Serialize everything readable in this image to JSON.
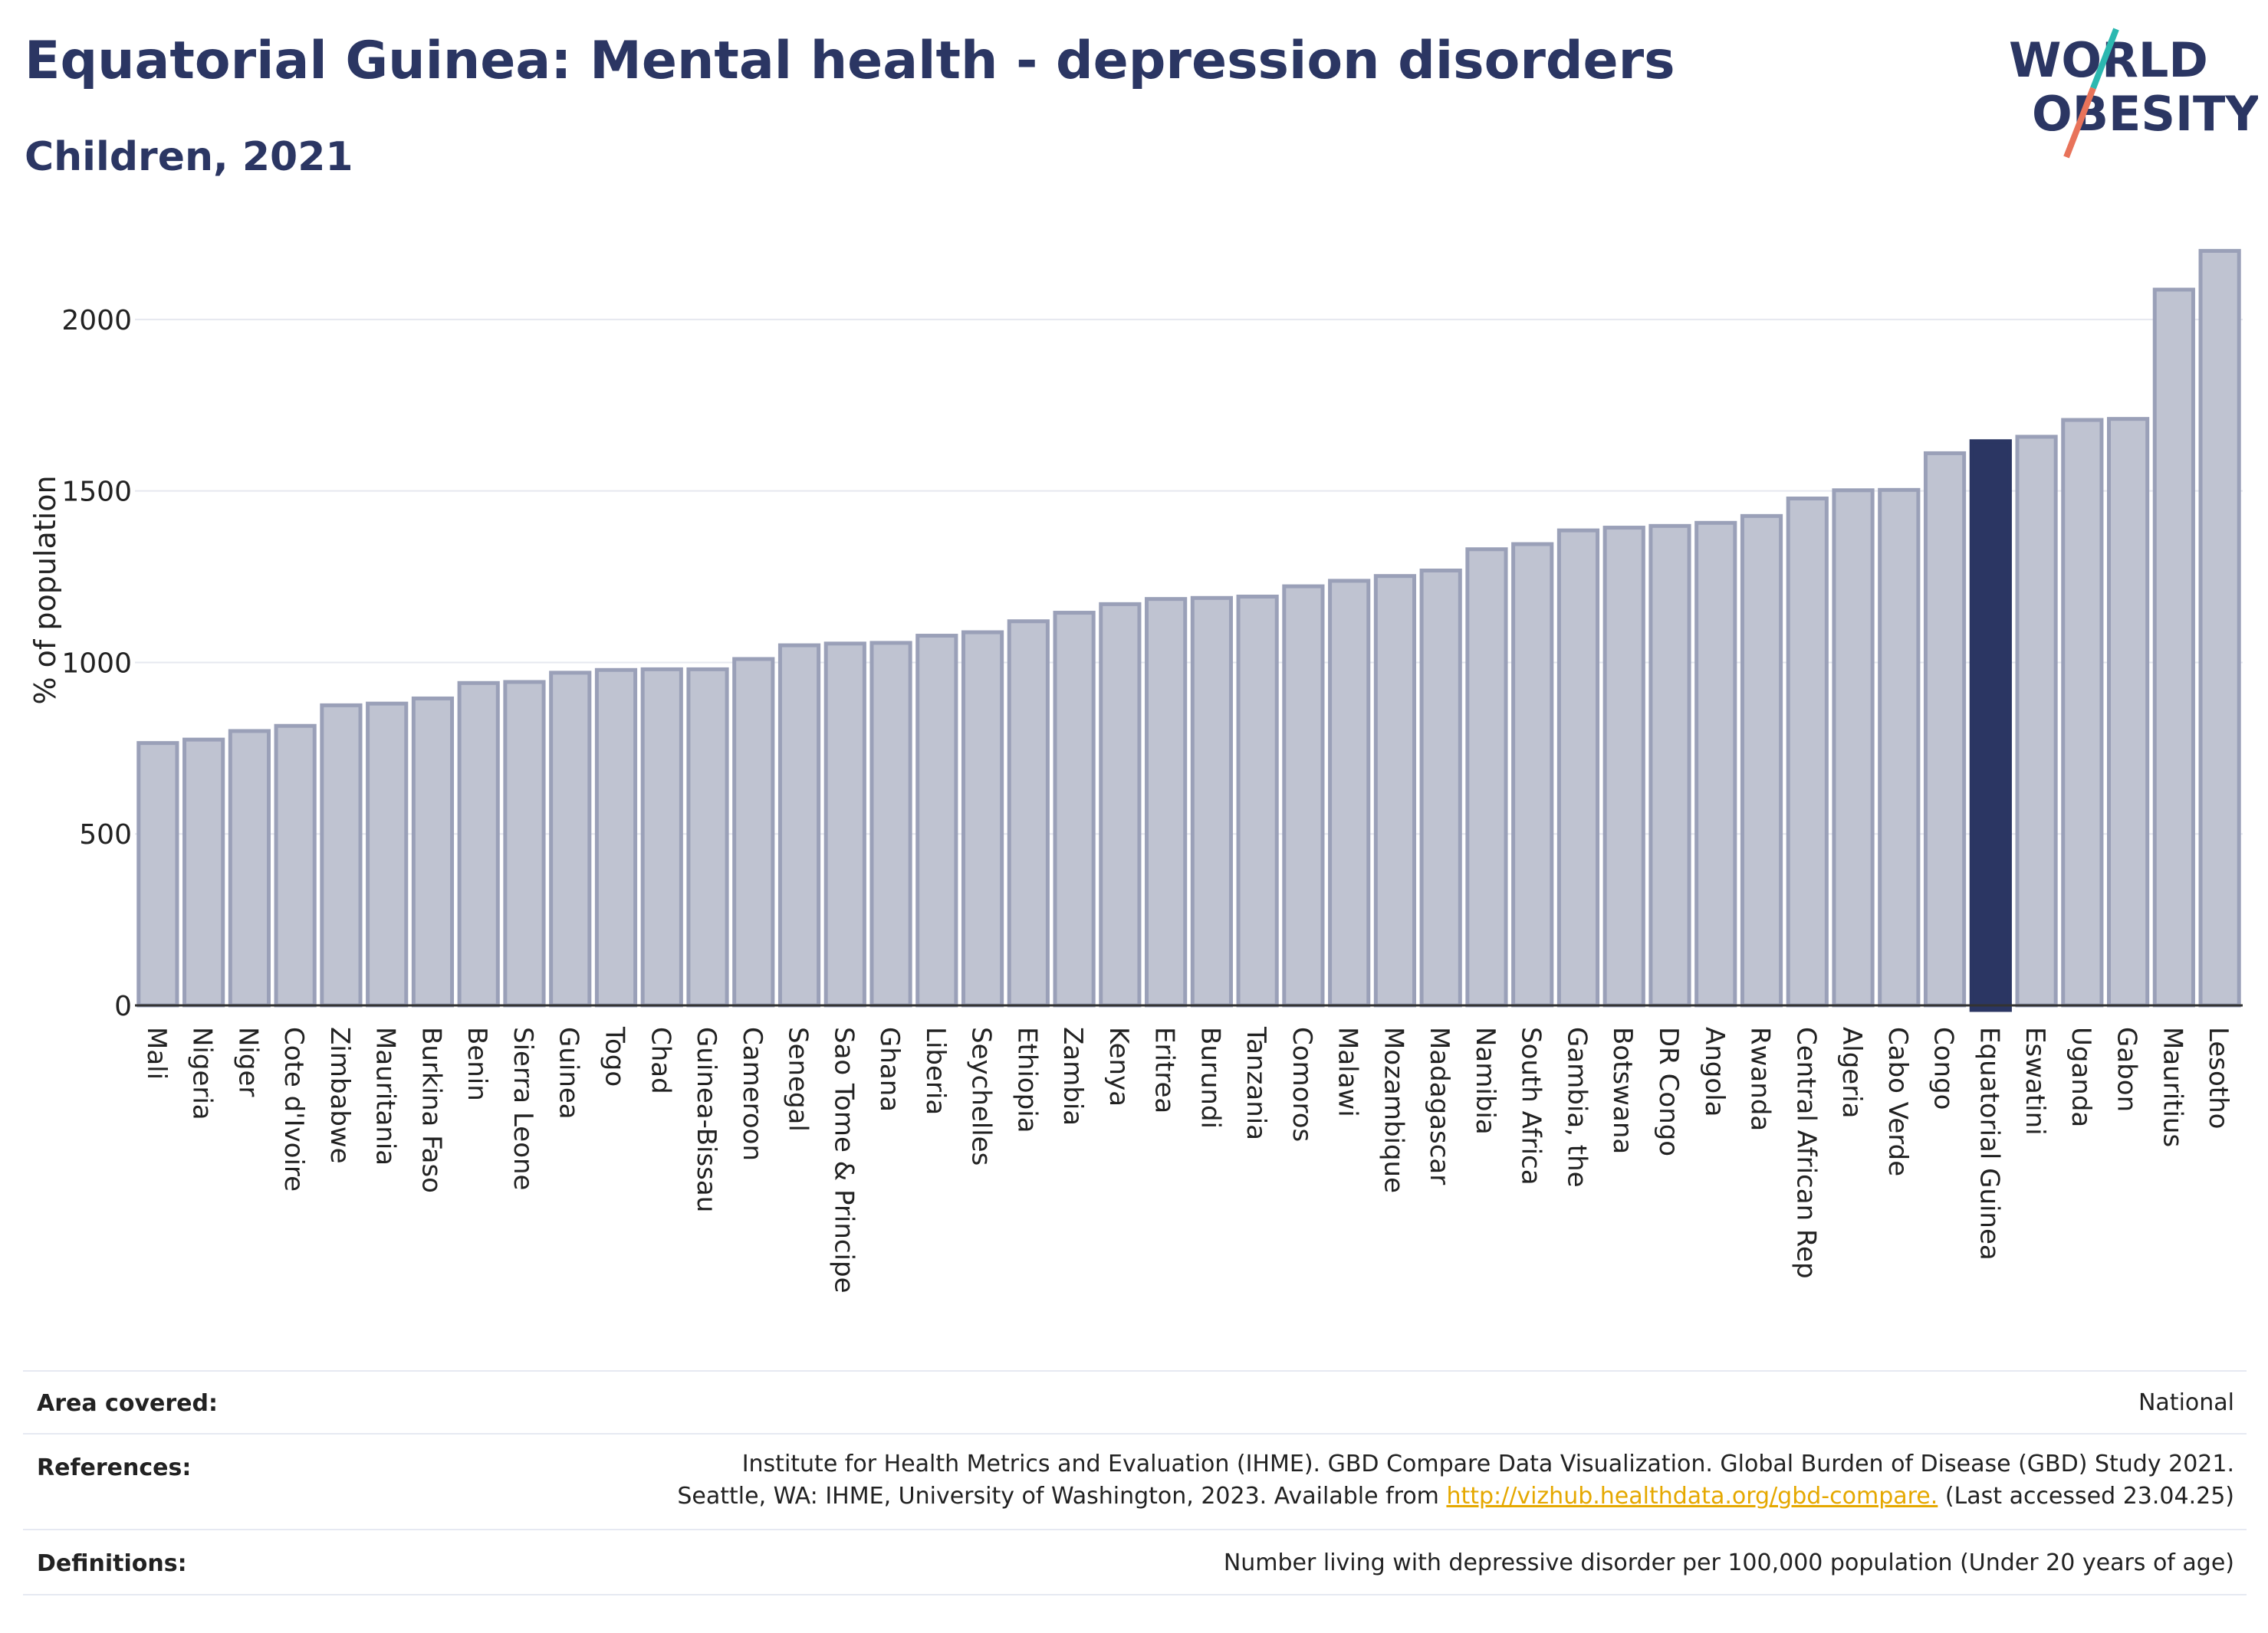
{
  "header": {
    "title": "Equatorial Guinea: Mental health - depression disorders",
    "subtitle": "Children, 2021"
  },
  "logo": {
    "line1": "WORLD",
    "line2": "OBESITY"
  },
  "colors": {
    "highlight": "#2b3663",
    "bar_fill": "#bfc3d1",
    "bar_stroke": "#9aa0b8",
    "grid": "#e6e8ef",
    "title": "#2b3663",
    "link": "#e5a800",
    "logo_teal": "#2cb8b0",
    "logo_coral": "#e8735a"
  },
  "chart_data": {
    "type": "bar",
    "ylabel": "% of population",
    "xlabel": "",
    "ylim": [
      0,
      2250
    ],
    "yticks": [
      0,
      500,
      1000,
      1500,
      2000
    ],
    "grid": true,
    "highlight": "Equatorial Guinea",
    "categories": [
      "Mali",
      "Nigeria",
      "Niger",
      "Cote d'Ivoire",
      "Zimbabwe",
      "Mauritania",
      "Burkina Faso",
      "Benin",
      "Sierra Leone",
      "Guinea",
      "Togo",
      "Chad",
      "Guinea-Bissau",
      "Cameroon",
      "Senegal",
      "Sao Tome & Principe",
      "Ghana",
      "Liberia",
      "Seychelles",
      "Ethiopia",
      "Zambia",
      "Kenya",
      "Eritrea",
      "Burundi",
      "Tanzania",
      "Comoros",
      "Malawi",
      "Mozambique",
      "Madagascar",
      "Namibia",
      "South Africa",
      "Gambia, the",
      "Botswana",
      "DR Congo",
      "Angola",
      "Rwanda",
      "Central African Rep",
      "Algeria",
      "Cabo Verde",
      "Congo",
      "Equatorial Guinea",
      "Eswatini",
      "Uganda",
      "Gabon",
      "Mauritius",
      "Lesotho"
    ],
    "values": [
      765,
      775,
      800,
      815,
      875,
      880,
      895,
      940,
      943,
      970,
      978,
      980,
      980,
      1010,
      1050,
      1055,
      1057,
      1078,
      1088,
      1120,
      1145,
      1170,
      1185,
      1188,
      1192,
      1222,
      1238,
      1252,
      1268,
      1330,
      1345,
      1385,
      1393,
      1398,
      1407,
      1427,
      1478,
      1502,
      1503,
      1610,
      1645,
      1658,
      1707,
      1710,
      2087,
      2200
    ]
  },
  "footer": {
    "area_label": "Area covered:",
    "area_value": "National",
    "references_label": "References:",
    "references_line1": "Institute for Health Metrics and Evaluation (IHME). GBD Compare Data Visualization. Global Burden of Disease (GBD) Study 2021.",
    "references_line2_pre": "Seattle, WA: IHME, University of Washington, 2023. Available from ",
    "references_link": "http://vizhub.healthdata.org/gbd-compare.",
    "references_line2_post": " (Last accessed 23.04.25)",
    "definitions_label": "Definitions:",
    "definitions_value": "Number living with depressive disorder per 100,000 population (Under 20 years of age)"
  }
}
